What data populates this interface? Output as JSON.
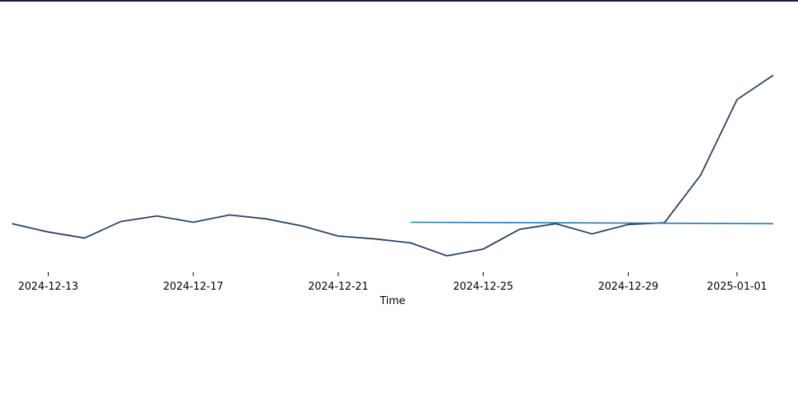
{
  "chart_data": {
    "type": "line",
    "title": "",
    "xlabel": "Time",
    "ylabel": "",
    "grid": false,
    "x_ticks": [
      "2024-12-13",
      "2024-12-17",
      "2024-12-21",
      "2024-12-25",
      "2024-12-29",
      "2025-01-01"
    ],
    "xlim": [
      "2024-12-12",
      "2025-01-03"
    ],
    "ylim": [
      0,
      1
    ],
    "series": [
      {
        "color": "#2b3f5a",
        "x": [
          "2024-12-12",
          "2024-12-13",
          "2024-12-14",
          "2024-12-15",
          "2024-12-16",
          "2024-12-17",
          "2024-12-18",
          "2024-12-19",
          "2024-12-20",
          "2024-12-21",
          "2024-12-22",
          "2024-12-23",
          "2024-12-24",
          "2024-12-25",
          "2024-12-26",
          "2024-12-27",
          "2024-12-28",
          "2024-12-29",
          "2024-12-30",
          "2024-12-31",
          "2025-01-01",
          "2025-01-02"
        ],
        "values": [
          0.212,
          0.178,
          0.153,
          0.221,
          0.244,
          0.218,
          0.248,
          0.232,
          0.203,
          0.161,
          0.15,
          0.133,
          0.08,
          0.108,
          0.189,
          0.212,
          0.17,
          0.209,
          0.216,
          0.412,
          0.722,
          0.822
        ]
      },
      {
        "color": "#1f77b4",
        "x": [
          "2024-12-23",
          "2025-01-02"
        ],
        "values": [
          0.218,
          0.212
        ]
      }
    ]
  },
  "colors": {
    "top_bar": "#1a1a3a"
  }
}
